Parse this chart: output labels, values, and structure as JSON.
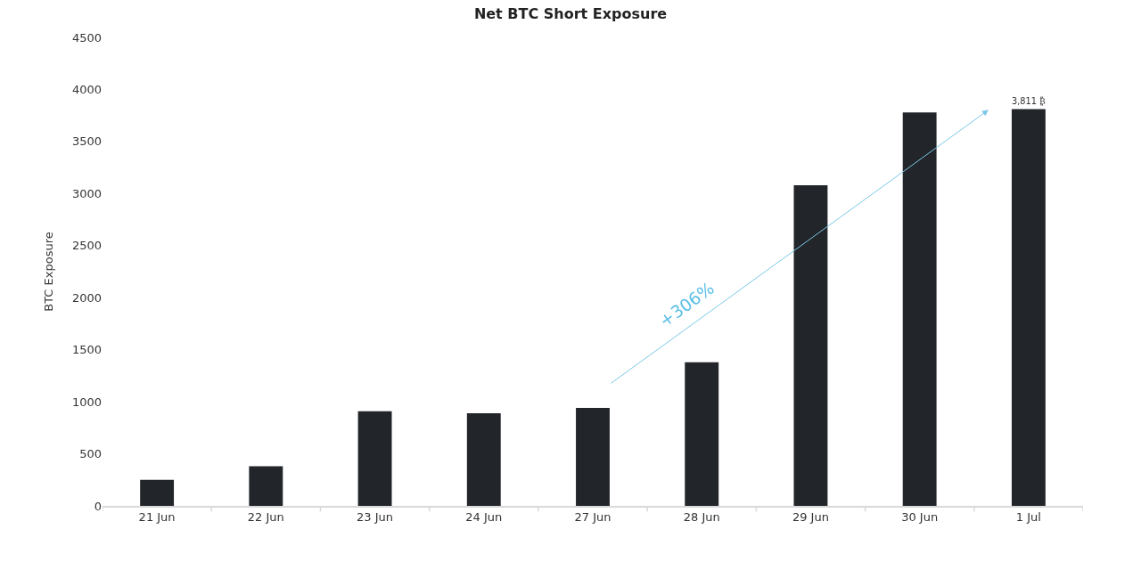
{
  "chart_data": {
    "type": "bar",
    "title": "Net BTC Short Exposure",
    "ylabel": "BTC Exposure",
    "categories": [
      "21 Jun",
      "22 Jun",
      "23 Jun",
      "24 Jun",
      "27 Jun",
      "28 Jun",
      "29 Jun",
      "30 Jun",
      "1 Jul"
    ],
    "values": [
      250,
      380,
      910,
      890,
      940,
      1380,
      3080,
      3780,
      3811
    ],
    "value_labels": [
      null,
      null,
      null,
      null,
      null,
      null,
      null,
      null,
      "3,811 ₿"
    ],
    "color": "#222529",
    "ylim": [
      0,
      4500
    ],
    "yticks": [
      0,
      500,
      1000,
      1500,
      2000,
      2500,
      3000,
      3500,
      4000,
      4500
    ],
    "annotations": [
      "+306%"
    ]
  }
}
